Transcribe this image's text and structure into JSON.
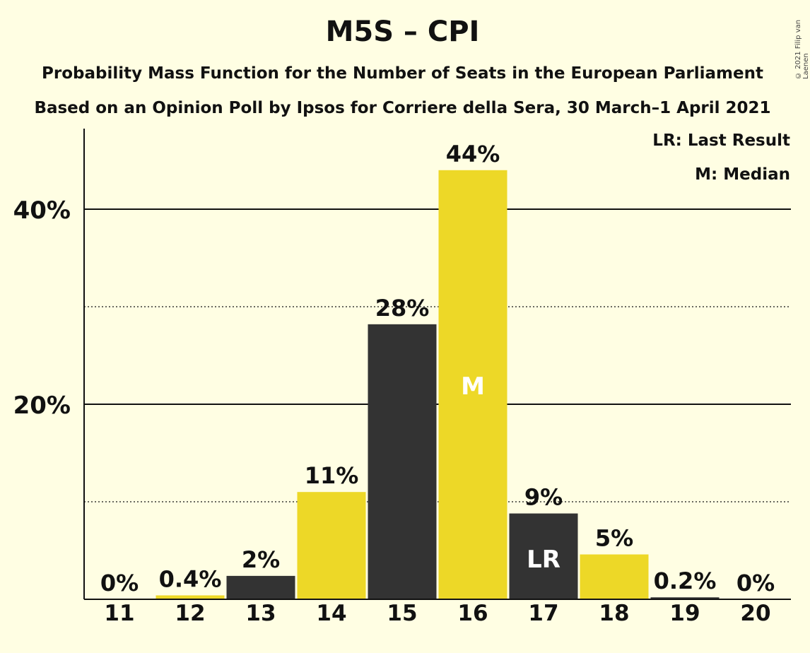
{
  "header": {
    "title": "M5S – CPI",
    "subtitle1": "Probability Mass Function for the Number of Seats in the European Parliament",
    "subtitle2": "Based on an Opinion Poll by Ipsos for Corriere della Sera, 30 March–1 April 2021",
    "copyright": "© 2021 Filip van Laenen"
  },
  "legend": {
    "last_result": "LR: Last Result",
    "median": "M: Median"
  },
  "colors": {
    "background": "#FFFEE3",
    "yellow": "#EDD827",
    "dark": "#333333"
  },
  "chart_data": {
    "type": "bar",
    "categories": [
      "11",
      "12",
      "13",
      "14",
      "15",
      "16",
      "17",
      "18",
      "19",
      "20"
    ],
    "values": [
      0,
      0.4,
      2.4,
      11,
      28.2,
      44,
      8.8,
      4.6,
      0.2,
      0
    ],
    "labels": [
      "0%",
      "0.4%",
      "2%",
      "11%",
      "28%",
      "44%",
      "9%",
      "5%",
      "0.2%",
      "0%"
    ],
    "bar_colors": [
      "yellow",
      "yellow",
      "dark",
      "yellow",
      "dark",
      "yellow",
      "dark",
      "yellow",
      "dark",
      "yellow"
    ],
    "bar_marks": [
      "",
      "",
      "",
      "",
      "",
      "M",
      "LR",
      "",
      "",
      ""
    ],
    "yticks": [
      20,
      40
    ],
    "ytick_labels": [
      "20%",
      "40%"
    ],
    "minor_gridlines": [
      10,
      30
    ],
    "ylim": [
      0,
      48
    ]
  }
}
